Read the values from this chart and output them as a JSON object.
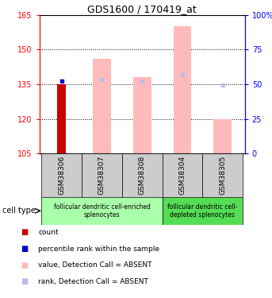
{
  "title": "GDS1600 / 170419_at",
  "samples": [
    "GSM38306",
    "GSM38307",
    "GSM38308",
    "GSM38304",
    "GSM38305"
  ],
  "ylim": [
    105,
    165
  ],
  "y2lim": [
    0,
    100
  ],
  "yticks": [
    105,
    120,
    135,
    150,
    165
  ],
  "y2ticks": [
    0,
    25,
    50,
    75,
    100
  ],
  "ytick_labels": [
    "105",
    "120",
    "135",
    "150",
    "165"
  ],
  "y2tick_labels": [
    "0",
    "25",
    "50",
    "75",
    "100%"
  ],
  "bar_bottom": 105,
  "pink_bars": {
    "GSM38306": null,
    "GSM38307": 146,
    "GSM38308": 138,
    "GSM38304": 160,
    "GSM38305": 120
  },
  "red_bars": {
    "GSM38306": 135,
    "GSM38307": null,
    "GSM38308": null,
    "GSM38304": null,
    "GSM38305": null
  },
  "blue_dots": {
    "GSM38306": 136.5,
    "GSM38307": null,
    "GSM38308": null,
    "GSM38304": null,
    "GSM38305": null
  },
  "lavender_dots": {
    "GSM38306": null,
    "GSM38307": 137,
    "GSM38308": 136.5,
    "GSM38304": 139,
    "GSM38305": 134.5
  },
  "group1_label": "follicular dendritic cell-enriched\nsplenocytes",
  "group2_label": "follicular dendritic cell-\ndepleted splenocytes",
  "cell_type_label": "cell type",
  "legend_items": [
    {
      "label": "count",
      "color": "#cc0000"
    },
    {
      "label": "percentile rank within the sample",
      "color": "#0000cc"
    },
    {
      "label": "value, Detection Call = ABSENT",
      "color": "#ffbbbb"
    },
    {
      "label": "rank, Detection Call = ABSENT",
      "color": "#bbbbee"
    }
  ],
  "pink_color": "#ffbbbb",
  "red_color": "#cc0000",
  "blue_color": "#0000cc",
  "lavender_color": "#bbbbee",
  "group1_color": "#aaffaa",
  "group2_color": "#55dd55",
  "sample_bg_color": "#cccccc",
  "bar_width": 0.45
}
